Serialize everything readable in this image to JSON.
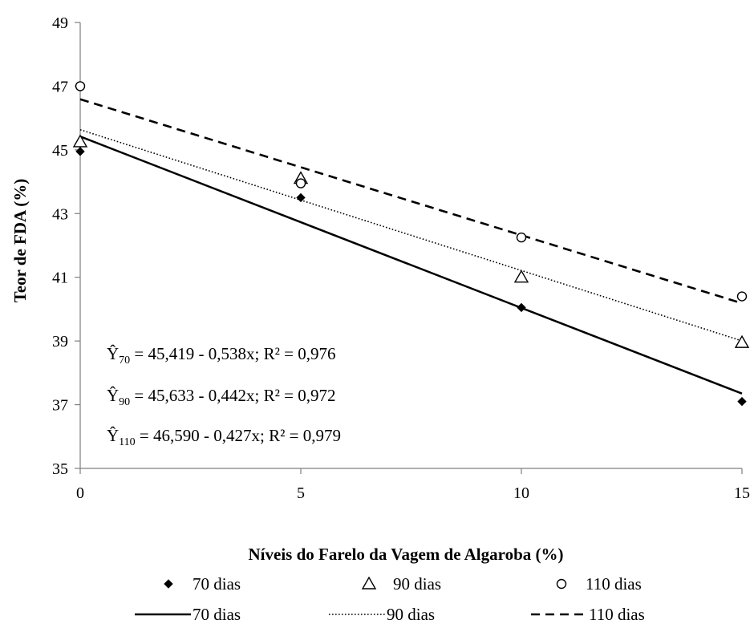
{
  "chart_data": {
    "type": "scatter",
    "xlabel": "Níveis do Farelo da Vagem de Algaroba (%)",
    "ylabel": "Teor de FDA (%)",
    "xlim": [
      0,
      15
    ],
    "ylim": [
      35,
      49
    ],
    "xticks": [
      0,
      5,
      10,
      15
    ],
    "yticks": [
      35,
      37,
      39,
      41,
      43,
      45,
      47,
      49
    ],
    "grid": false,
    "legend_position": "bottom",
    "series": [
      {
        "name": "70 dias",
        "marker": "diamond",
        "x": [
          0,
          5,
          10,
          15
        ],
        "y": [
          44.95,
          43.5,
          40.05,
          37.1
        ]
      },
      {
        "name": "90 dias",
        "marker": "triangle",
        "x": [
          0,
          5,
          10,
          15
        ],
        "y": [
          45.25,
          44.1,
          41.0,
          38.95
        ]
      },
      {
        "name": "110 dias",
        "marker": "circle",
        "x": [
          0,
          5,
          10,
          15
        ],
        "y": [
          47.0,
          43.95,
          42.25,
          40.4
        ]
      }
    ],
    "trendlines": [
      {
        "name": "70 dias",
        "style": "solid",
        "intercept": 45.419,
        "slope": -0.538
      },
      {
        "name": "90 dias",
        "style": "dotted",
        "intercept": 45.633,
        "slope": -0.442
      },
      {
        "name": "110 dias",
        "style": "dashed",
        "intercept": 46.59,
        "slope": -0.427
      }
    ],
    "equations": [
      {
        "y": "Ŷ",
        "sub": "70",
        "rest": " = 45,419 - 0,538x; R² = 0,976"
      },
      {
        "y": "Ŷ",
        "sub": "90",
        "rest": " = 45,633 - 0,442x; R² = 0,972"
      },
      {
        "y": "Ŷ",
        "sub": "110",
        "rest": " = 46,590 - 0,427x; R² = 0,979"
      }
    ]
  }
}
